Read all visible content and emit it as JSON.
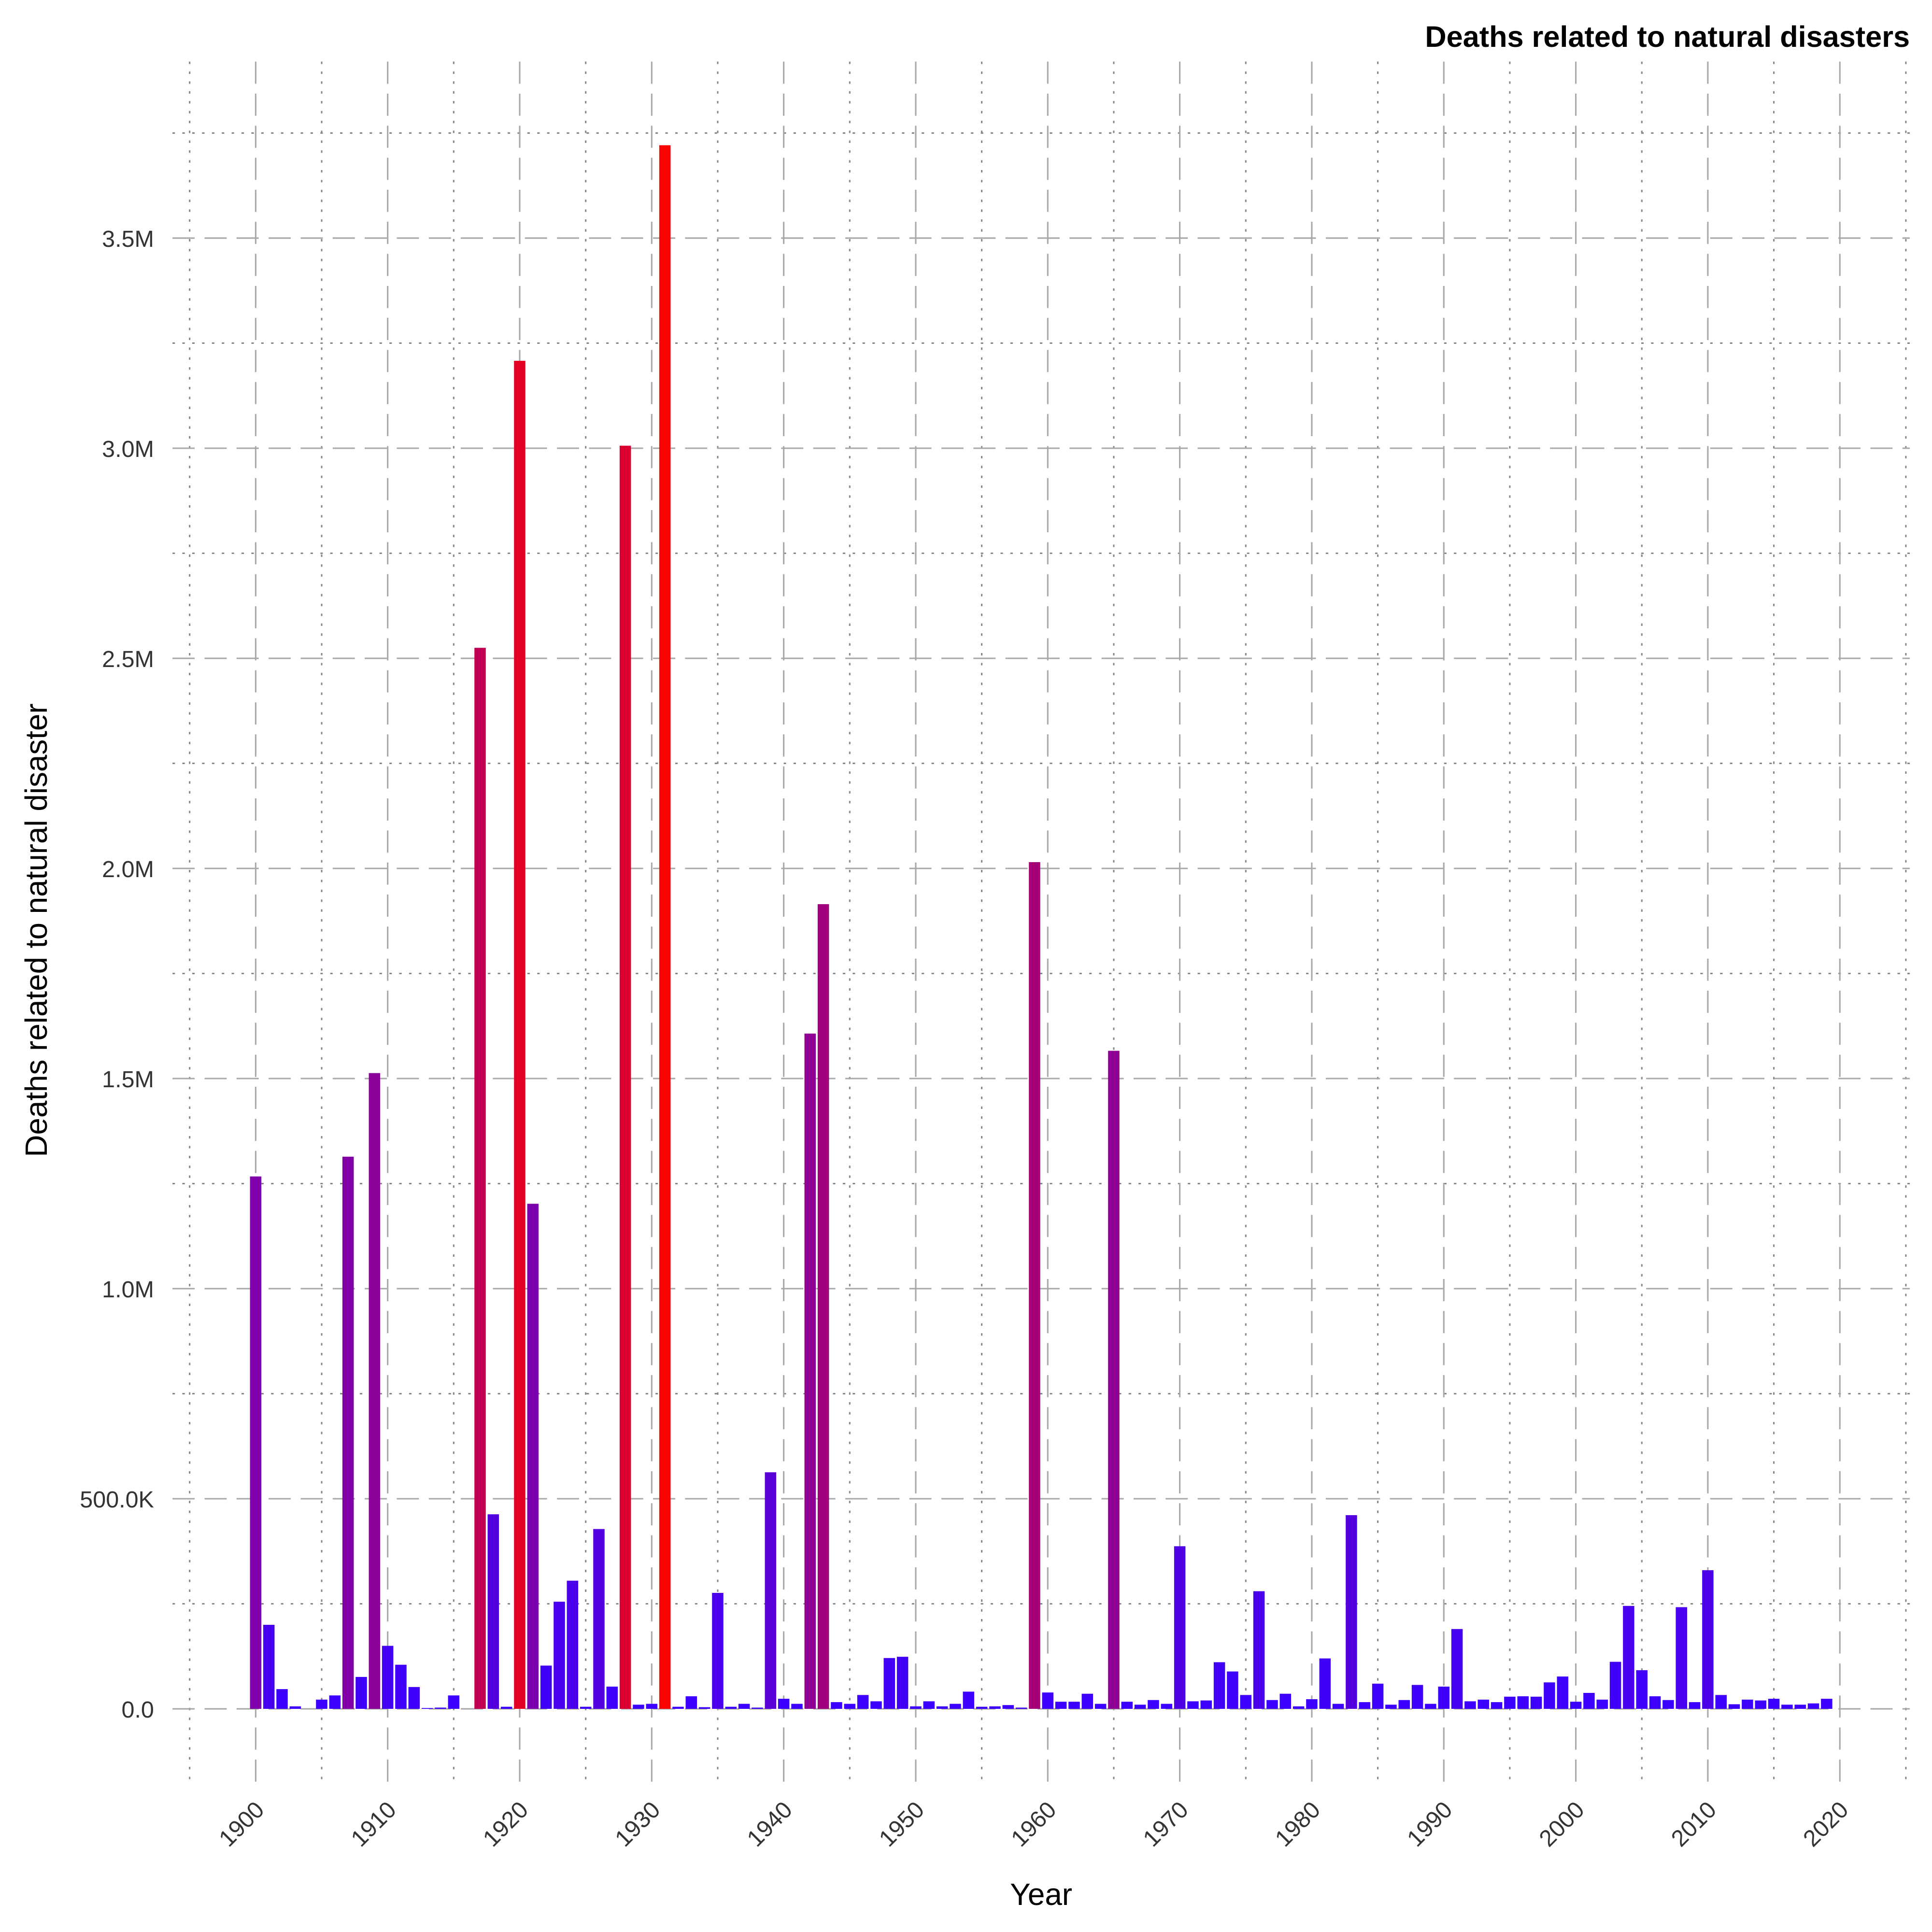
{
  "chart_data": {
    "type": "bar",
    "title": "Deaths related to natural disasters",
    "xlabel": "Year",
    "ylabel": "Deaths related to natural disaster",
    "x": [
      1900,
      1901,
      1902,
      1903,
      1904,
      1905,
      1906,
      1907,
      1908,
      1909,
      1910,
      1911,
      1912,
      1913,
      1914,
      1915,
      1916,
      1917,
      1918,
      1919,
      1920,
      1921,
      1922,
      1923,
      1924,
      1925,
      1926,
      1927,
      1928,
      1929,
      1930,
      1931,
      1932,
      1933,
      1934,
      1935,
      1936,
      1937,
      1938,
      1939,
      1940,
      1941,
      1942,
      1943,
      1944,
      1945,
      1946,
      1947,
      1948,
      1949,
      1950,
      1951,
      1952,
      1953,
      1954,
      1955,
      1956,
      1957,
      1958,
      1959,
      1960,
      1961,
      1962,
      1963,
      1964,
      1965,
      1966,
      1967,
      1968,
      1969,
      1970,
      1971,
      1972,
      1973,
      1974,
      1975,
      1976,
      1977,
      1978,
      1979,
      1980,
      1981,
      1982,
      1983,
      1984,
      1985,
      1986,
      1987,
      1988,
      1989,
      1990,
      1991,
      1992,
      1993,
      1994,
      1995,
      1996,
      1997,
      1998,
      1999,
      2000,
      2001,
      2002,
      2003,
      2004,
      2005,
      2006,
      2007,
      2008,
      2009,
      2010,
      2011,
      2012,
      2013,
      2014,
      2015,
      2016,
      2017,
      2018,
      2019
    ],
    "values": [
      1267000,
      200000,
      47000,
      6000,
      0,
      22000,
      32000,
      1314000,
      76000,
      1513000,
      150000,
      105000,
      52000,
      2000,
      3000,
      32000,
      0,
      2525000,
      463000,
      5000,
      3208000,
      1202000,
      103000,
      255000,
      305000,
      5000,
      428000,
      53000,
      3006000,
      10000,
      12000,
      3721000,
      5000,
      30000,
      4000,
      276000,
      5000,
      12000,
      3000,
      563000,
      24000,
      12000,
      1607000,
      1915000,
      16000,
      12000,
      33000,
      18000,
      121000,
      124000,
      6000,
      18000,
      6000,
      12000,
      41000,
      5000,
      6000,
      9000,
      3000,
      2015000,
      39000,
      17000,
      17000,
      36000,
      12000,
      1566000,
      17000,
      10000,
      21000,
      12000,
      387000,
      18000,
      20000,
      111000,
      89000,
      33000,
      280000,
      21000,
      36000,
      6000,
      23000,
      120000,
      12000,
      461000,
      16000,
      60000,
      10000,
      21000,
      57000,
      12000,
      53000,
      190000,
      18000,
      22000,
      16000,
      29000,
      30000,
      29000,
      63000,
      77000,
      17000,
      38000,
      22000,
      112000,
      245000,
      92000,
      30000,
      21000,
      242000,
      16000,
      330000,
      33000,
      11000,
      22000,
      20000,
      24000,
      10000,
      10000,
      13000,
      24000
    ],
    "color_scale": [
      "#3b00ff",
      "#ff0000"
    ],
    "xlim": [
      1893.7,
      2025.3
    ],
    "xticks": [
      1900,
      1910,
      1920,
      1930,
      1940,
      1950,
      1960,
      1970,
      1980,
      1990,
      2000,
      2010,
      2020
    ],
    "minor_xticks": [
      1895,
      1905,
      1915,
      1925,
      1935,
      1945,
      1955,
      1965,
      1975,
      1985,
      1995,
      2005,
      2015,
      2025
    ],
    "ylim": [
      -185000,
      3920000
    ],
    "yticks": [
      {
        "value": 0,
        "label": "0.0"
      },
      {
        "value": 500000,
        "label": "500.0K"
      },
      {
        "value": 1000000,
        "label": "1.0M"
      },
      {
        "value": 1500000,
        "label": "1.5M"
      },
      {
        "value": 2000000,
        "label": "2.0M"
      },
      {
        "value": 2500000,
        "label": "2.5M"
      },
      {
        "value": 3000000,
        "label": "3.0M"
      },
      {
        "value": 3500000,
        "label": "3.5M"
      }
    ],
    "minor_yticks": [
      250000,
      750000,
      1250000,
      1750000,
      2250000,
      2750000,
      3250000,
      3750000
    ],
    "grid": true
  }
}
